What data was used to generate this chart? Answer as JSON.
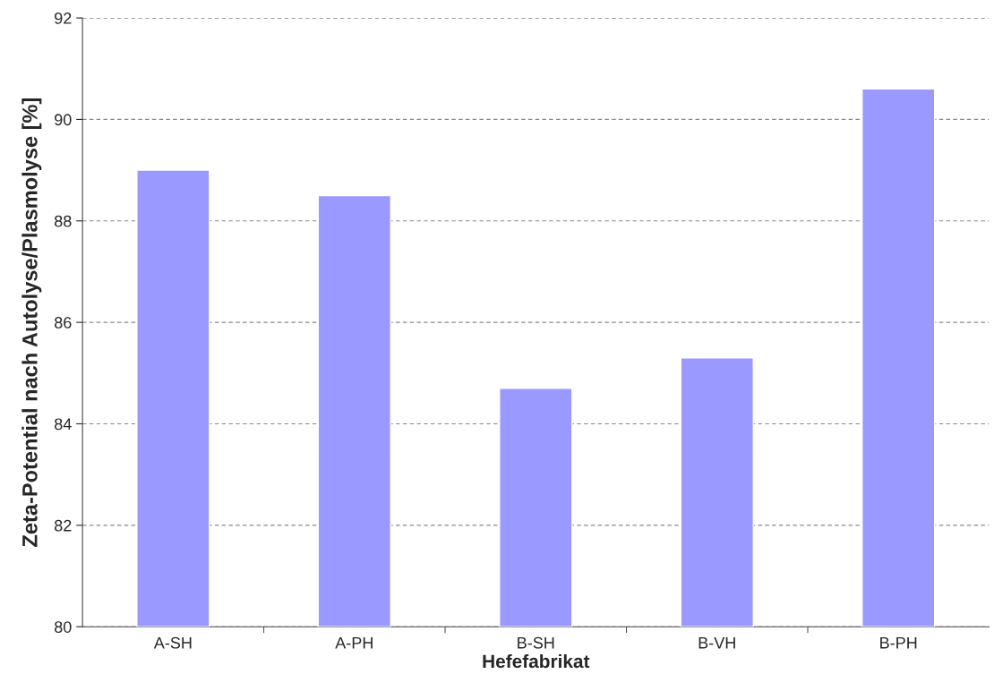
{
  "chart_data": {
    "type": "bar",
    "xlabel": "Hefefabrikat",
    "ylabel": "Zeta-Potential nach Autolyse/Plasmolyse [%]",
    "categories": [
      "A-SH",
      "A-PH",
      "B-SH",
      "B-VH",
      "B-PH"
    ],
    "values": [
      89.0,
      88.5,
      84.7,
      85.3,
      90.6
    ],
    "color": "#9999ff",
    "ylim": [
      80,
      92
    ],
    "yticks": [
      80,
      82,
      84,
      86,
      88,
      90,
      92
    ],
    "grid": "y",
    "legend": false
  }
}
